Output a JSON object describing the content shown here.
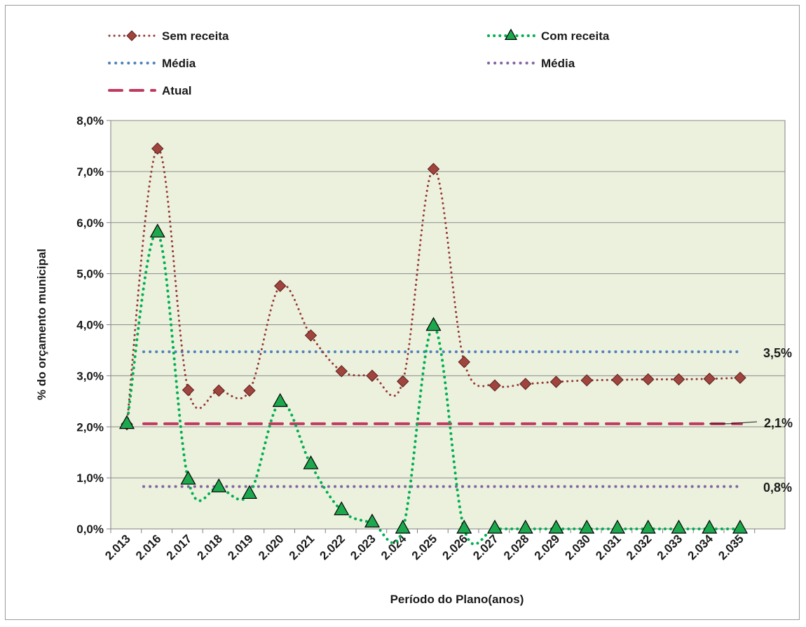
{
  "chart_data": {
    "type": "line",
    "xlabel": "Período do Plano(anos)",
    "ylabel": "% do orçamento municipal",
    "ylim": [
      0,
      8
    ],
    "yticks": [
      "0,0%",
      "1,0%",
      "2,0%",
      "3,0%",
      "4,0%",
      "5,0%",
      "6,0%",
      "7,0%",
      "8,0%"
    ],
    "categories": [
      "2.013",
      "2.016",
      "2.017",
      "2.018",
      "2.019",
      "2.020",
      "2.021",
      "2.022",
      "2.023",
      "2.024",
      "2.025",
      "2.026",
      "2.027",
      "2.028",
      "2.029",
      "2.030",
      "2.031",
      "2.032",
      "2.033",
      "2.034",
      "2.035"
    ],
    "grid": "horizontal",
    "legend_position": "top",
    "plot_background": "#ebf1dd",
    "series": [
      {
        "name": "Sem receita",
        "style": "dotted-line-diamond",
        "color": "#953735",
        "marker_color": "#a0443e",
        "values": [
          2.05,
          7.45,
          2.72,
          2.71,
          2.71,
          4.76,
          3.79,
          3.09,
          3.0,
          2.89,
          7.05,
          3.27,
          2.81,
          2.84,
          2.88,
          2.91,
          2.92,
          2.93,
          2.93,
          2.94,
          2.96
        ]
      },
      {
        "name": "Com  receita",
        "style": "dotted-line-triangle",
        "color": "#00b050",
        "marker_color": "#1da84e",
        "values": [
          2.05,
          5.8,
          0.96,
          0.81,
          0.68,
          2.48,
          1.26,
          0.36,
          0.12,
          0.0,
          3.97,
          0.0,
          0.0,
          0.0,
          0.0,
          0.0,
          0.0,
          0.0,
          0.0,
          0.0,
          0.0
        ]
      },
      {
        "name": "Média",
        "style": "dotted-line",
        "color": "#4f81bd",
        "constant": 3.47,
        "label": "3,5%"
      },
      {
        "name": "Média",
        "style": "dotted-line",
        "color": "#8064a2",
        "constant": 0.83,
        "label": "0,8%"
      },
      {
        "name": "Atual",
        "style": "dashed-line",
        "color": "#c0395f",
        "constant": 2.06,
        "label": "2,1%"
      }
    ]
  }
}
